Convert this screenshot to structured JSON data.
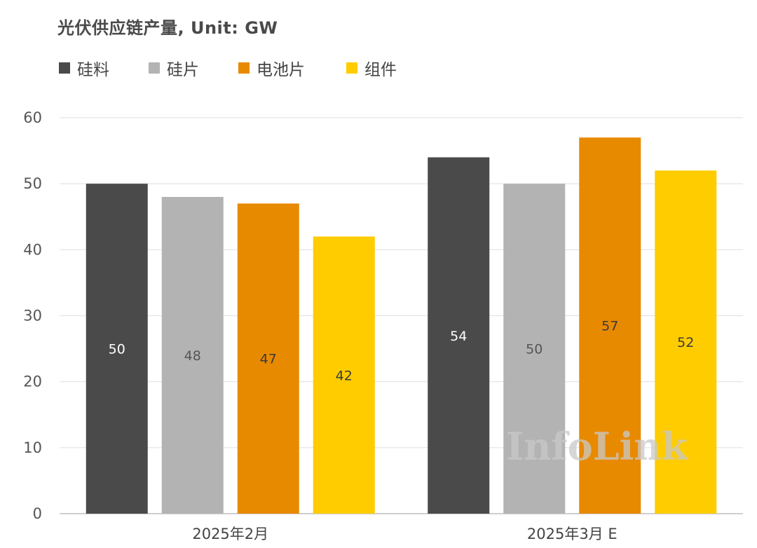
{
  "chart_data": {
    "type": "bar",
    "title": "光伏供应链产量, Unit: GW",
    "xlabel": "",
    "ylabel": "",
    "ylim": [
      0,
      60
    ],
    "yticks": [
      0,
      10,
      20,
      30,
      40,
      50,
      60
    ],
    "grid": true,
    "legend_position": "top-left",
    "categories": [
      "2025年2月",
      "2025年3月 E"
    ],
    "series": [
      {
        "name": "硅料",
        "color": "#4a4a4a",
        "label_color": "#ffffff",
        "values": [
          50,
          54
        ]
      },
      {
        "name": "硅片",
        "color": "#b3b3b3",
        "label_color": "#555555",
        "values": [
          48,
          50
        ]
      },
      {
        "name": "电池片",
        "color": "#e88a00",
        "label_color": "#3a3a3a",
        "values": [
          47,
          57
        ]
      },
      {
        "name": "组件",
        "color": "#ffcc00",
        "label_color": "#3a3a3a",
        "values": [
          42,
          52
        ]
      }
    ],
    "watermark": "InfoLink"
  }
}
